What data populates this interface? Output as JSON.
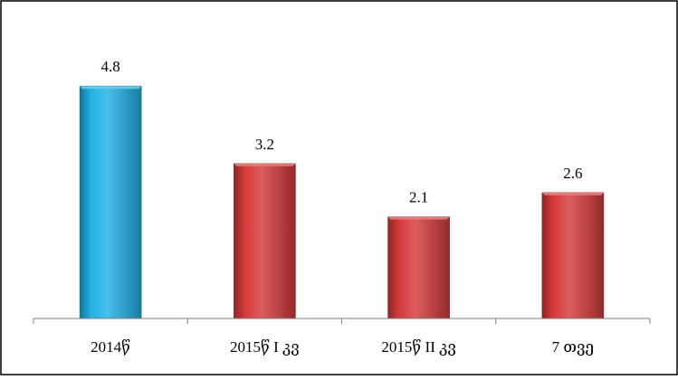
{
  "chart_data": {
    "type": "bar",
    "categories": [
      "2014წ",
      "2015წ I კვ",
      "2015წ II კვ",
      "7 თვე"
    ],
    "values": [
      4.8,
      3.2,
      2.1,
      2.6
    ],
    "value_labels": [
      "4.8",
      "3.2",
      "2.1",
      "2.6"
    ],
    "bar_colors": [
      "#1fb2e6",
      "#d63a3a",
      "#d63a3a",
      "#d63a3a"
    ],
    "title": "",
    "xlabel": "",
    "ylabel": "",
    "ylim": [
      0,
      6
    ],
    "grid": false,
    "legend": "none"
  },
  "colors": {
    "frame": "#000000",
    "axis": "#7f7f7f"
  }
}
